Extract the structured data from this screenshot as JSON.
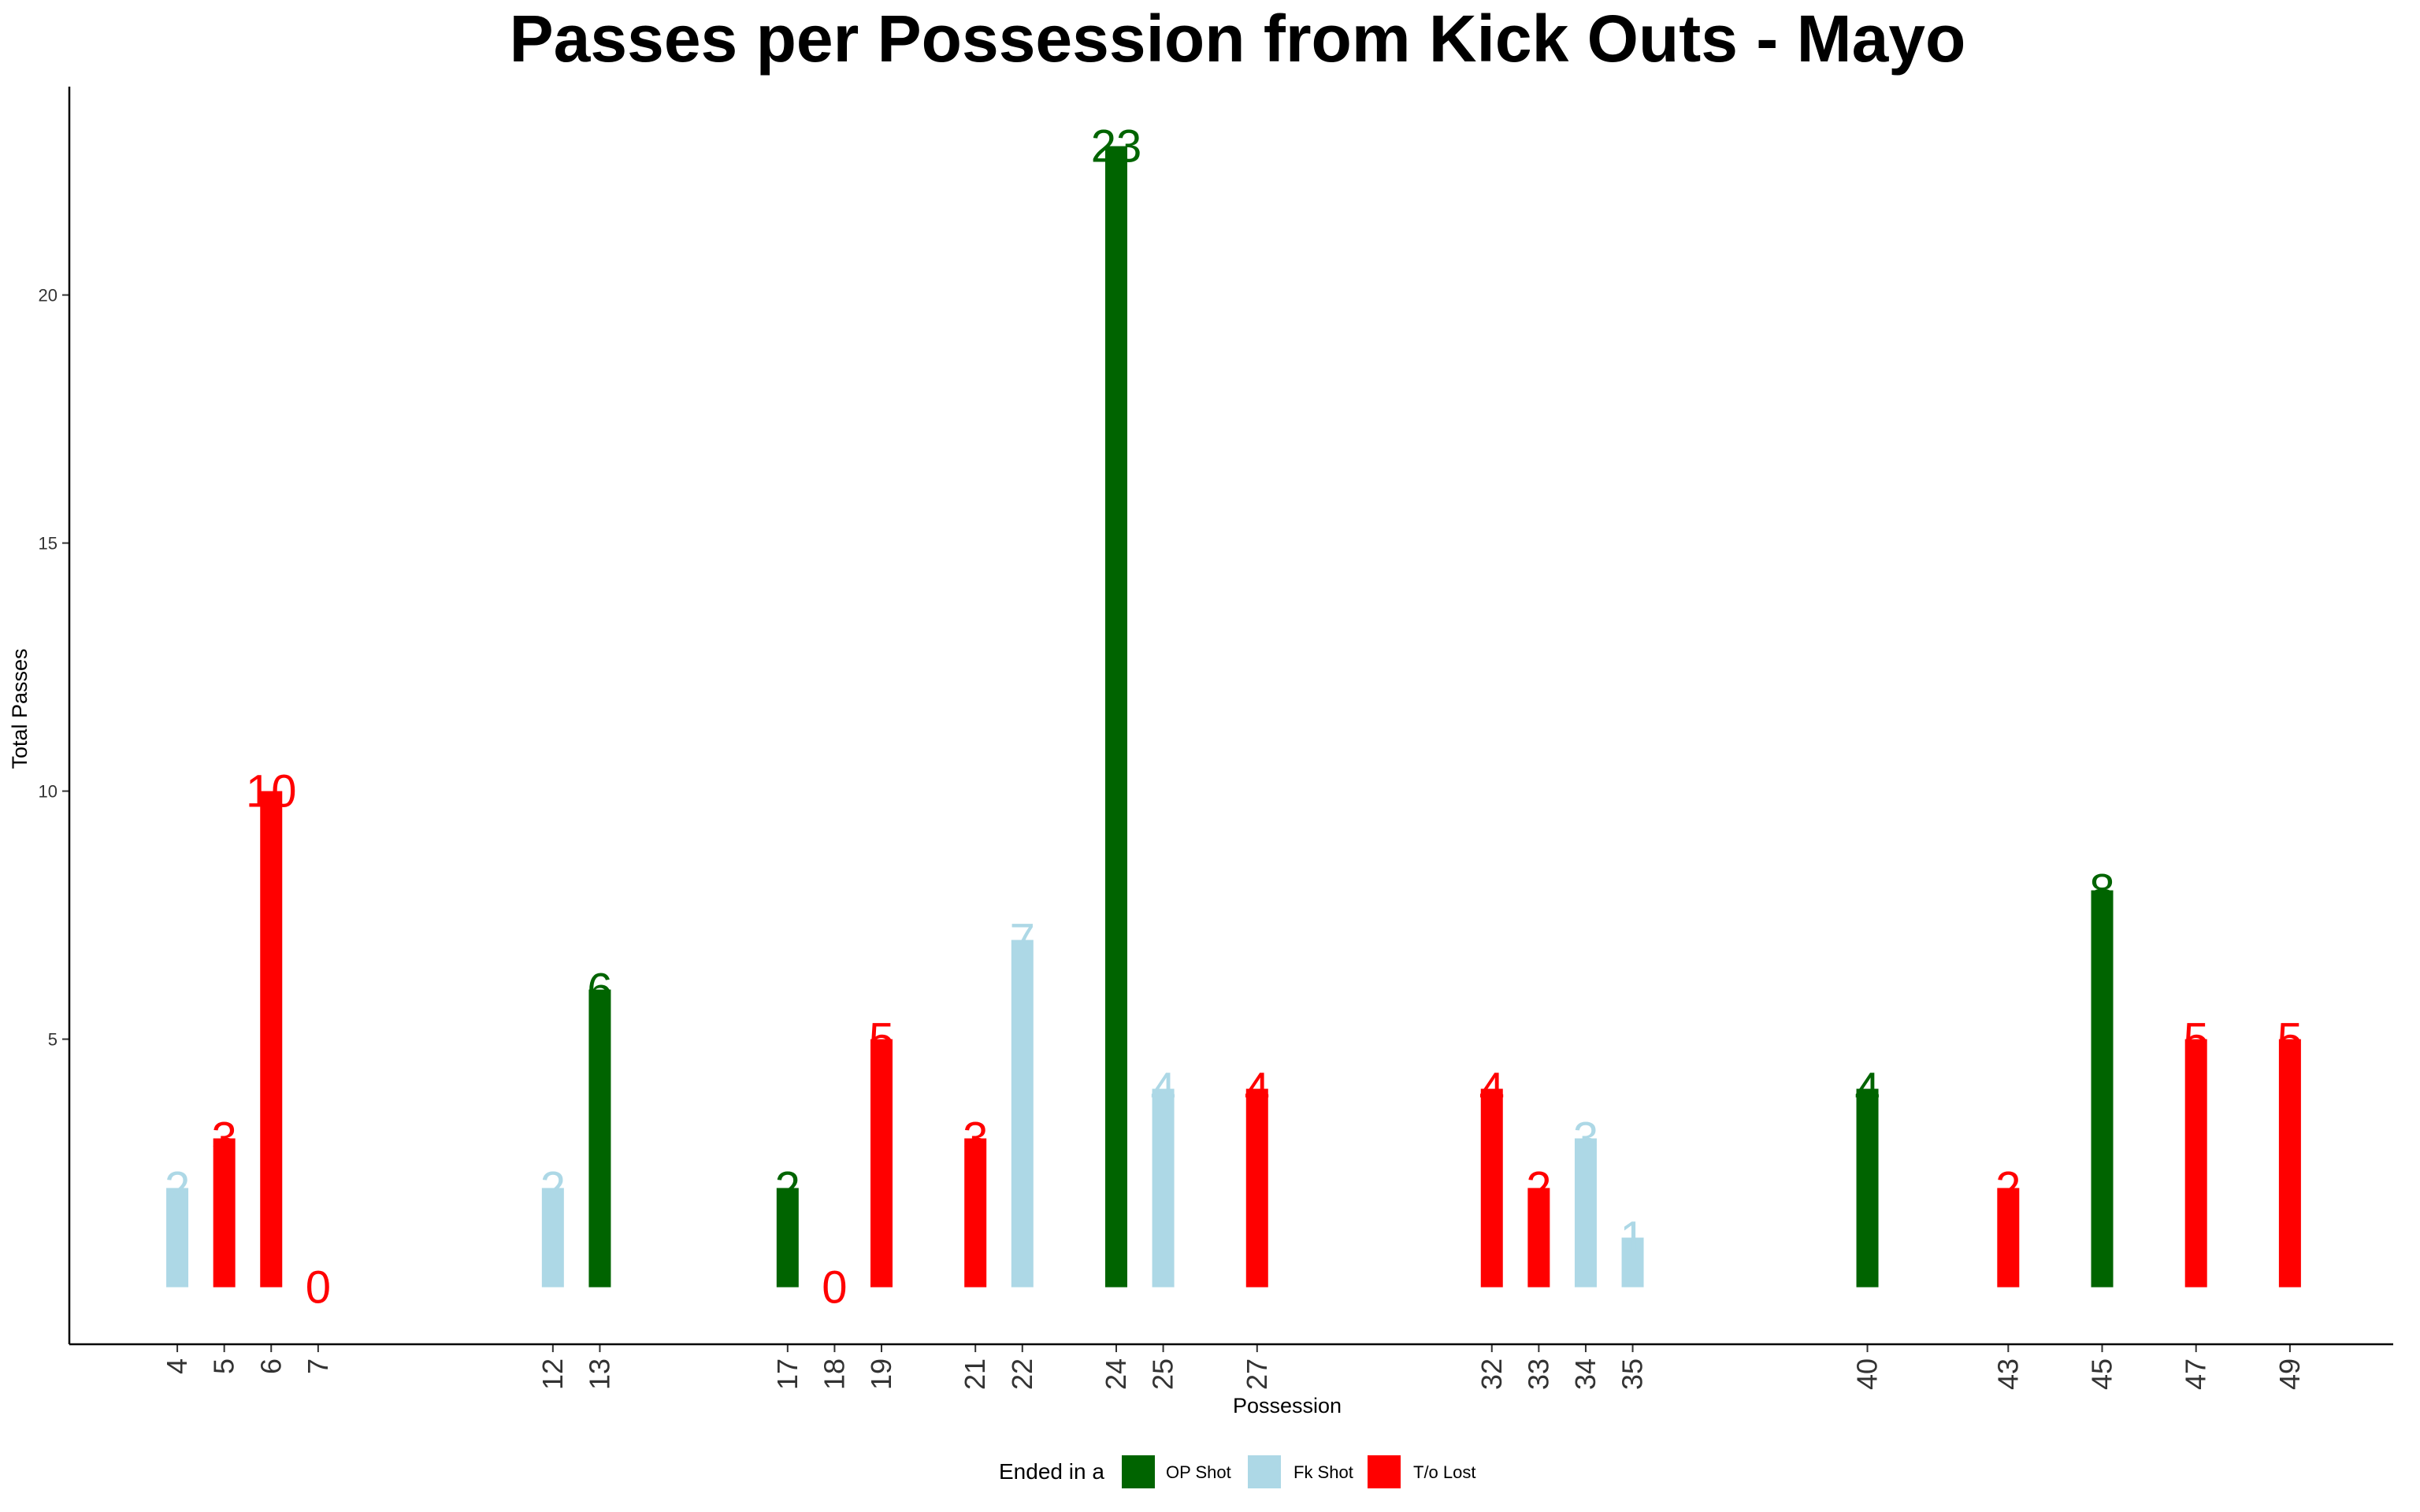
{
  "chart_data": {
    "type": "bar",
    "title": "Passes per Possession from Kick Outs - Mayo",
    "xlabel": "Possession",
    "ylabel": "Total Passes",
    "ylim": [
      -1.15,
      24.2
    ],
    "yticks": [
      5,
      10,
      15,
      20
    ],
    "legend": {
      "title": "Ended in a",
      "placement": "bottom",
      "entries": [
        {
          "key": "op",
          "label": "OP Shot",
          "color": "#006400"
        },
        {
          "key": "fk",
          "label": "Fk Shot",
          "color": "#ADD8E6"
        },
        {
          "key": "to",
          "label": "T/o Lost",
          "color": "#FF0000"
        }
      ]
    },
    "x_range": [
      1.7,
      51.2
    ],
    "data": [
      {
        "x": 4,
        "value": 2,
        "outcome": "fk"
      },
      {
        "x": 5,
        "value": 3,
        "outcome": "to"
      },
      {
        "x": 6,
        "value": 10,
        "outcome": "to"
      },
      {
        "x": 7,
        "value": 0,
        "outcome": "to"
      },
      {
        "x": 12,
        "value": 2,
        "outcome": "fk"
      },
      {
        "x": 13,
        "value": 6,
        "outcome": "op"
      },
      {
        "x": 17,
        "value": 2,
        "outcome": "op"
      },
      {
        "x": 18,
        "value": 0,
        "outcome": "to"
      },
      {
        "x": 19,
        "value": 5,
        "outcome": "to"
      },
      {
        "x": 21,
        "value": 3,
        "outcome": "to"
      },
      {
        "x": 22,
        "value": 7,
        "outcome": "fk"
      },
      {
        "x": 24,
        "value": 23,
        "outcome": "op"
      },
      {
        "x": 25,
        "value": 4,
        "outcome": "fk"
      },
      {
        "x": 27,
        "value": 4,
        "outcome": "to"
      },
      {
        "x": 32,
        "value": 4,
        "outcome": "to"
      },
      {
        "x": 33,
        "value": 2,
        "outcome": "to"
      },
      {
        "x": 34,
        "value": 3,
        "outcome": "fk"
      },
      {
        "x": 35,
        "value": 1,
        "outcome": "fk"
      },
      {
        "x": 40,
        "value": 4,
        "outcome": "op"
      },
      {
        "x": 43,
        "value": 2,
        "outcome": "to"
      },
      {
        "x": 45,
        "value": 8,
        "outcome": "op"
      },
      {
        "x": 47,
        "value": 5,
        "outcome": "to"
      },
      {
        "x": 49,
        "value": 5,
        "outcome": "to"
      }
    ]
  }
}
